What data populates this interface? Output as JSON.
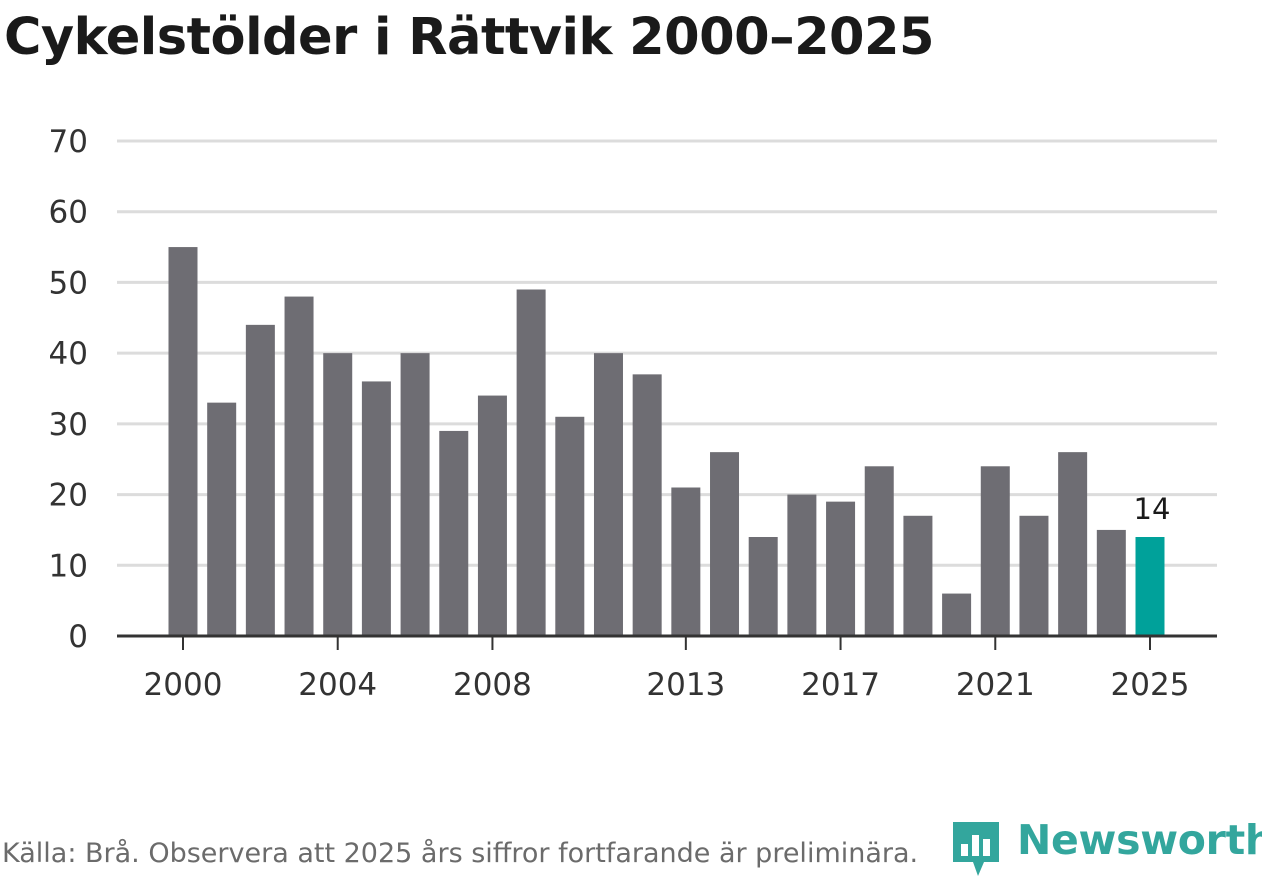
{
  "chart_data": {
    "type": "bar",
    "title": "Cykelstölder i Rättvik 2000–2025",
    "categories": [
      "2000",
      "2001",
      "2002",
      "2003",
      "2004",
      "2005",
      "2006",
      "2007",
      "2008",
      "2009",
      "2010",
      "2011",
      "2012",
      "2013",
      "2014",
      "2015",
      "2016",
      "2017",
      "2018",
      "2019",
      "2020",
      "2021",
      "2022",
      "2023",
      "2024",
      "2025"
    ],
    "values": [
      55,
      33,
      44,
      48,
      40,
      36,
      40,
      29,
      34,
      49,
      31,
      40,
      37,
      21,
      26,
      14,
      20,
      19,
      24,
      17,
      6,
      24,
      17,
      26,
      15,
      14
    ],
    "xtick_labels": [
      "2000",
      "2004",
      "2008",
      "2013",
      "2017",
      "2021",
      "2025"
    ],
    "yticks": [
      0,
      10,
      20,
      30,
      40,
      50,
      60,
      70
    ],
    "ylim": [
      0,
      70
    ],
    "xlabel": "",
    "ylabel": "",
    "grid": true,
    "bar_color": "#6e6d73",
    "highlight_color": "#00a19a",
    "highlight_category": "2025",
    "annotation": {
      "category": "2025",
      "text": "14"
    }
  },
  "footer": {
    "source": "Källa: Brå. Observera att 2025 års siffror fortfarande är preliminära.",
    "brand": "Newsworthy"
  }
}
